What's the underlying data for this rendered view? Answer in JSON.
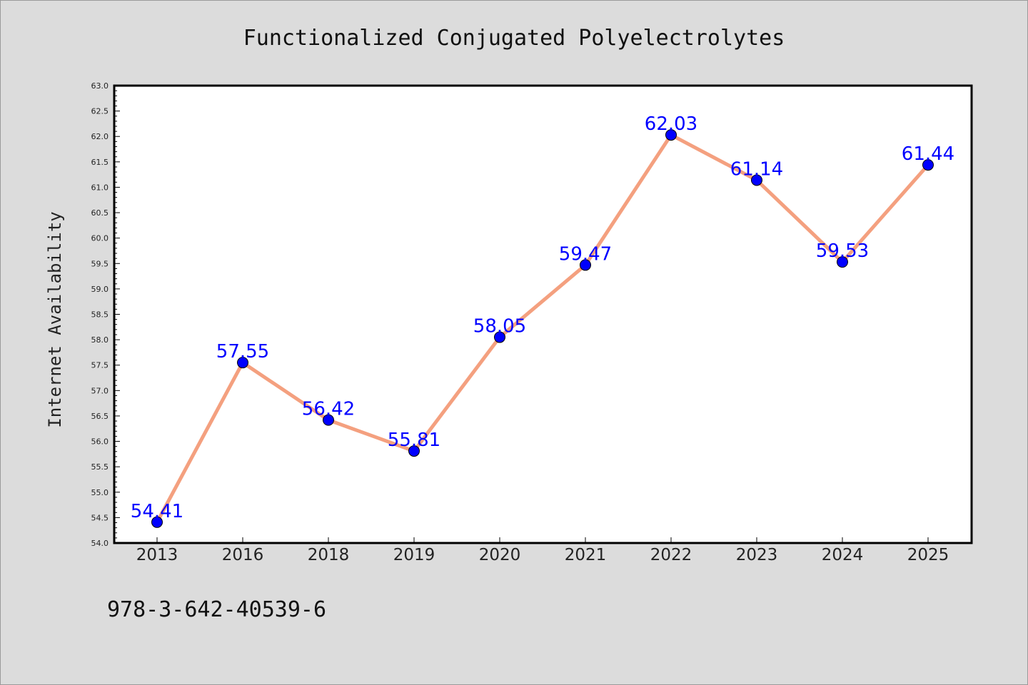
{
  "chart_data": {
    "type": "line",
    "title": "Functionalized Conjugated Polyelectrolytes",
    "ylabel": "Internet Availability",
    "xlabel": "",
    "categories": [
      "2013",
      "2016",
      "2018",
      "2019",
      "2020",
      "2021",
      "2022",
      "2023",
      "2024",
      "2025"
    ],
    "series": [
      {
        "values": [
          54.41,
          57.55,
          56.42,
          55.81,
          58.05,
          59.47,
          62.03,
          61.14,
          59.53,
          61.44
        ],
        "labels": [
          "54.41",
          "57.55",
          "56.42",
          "55.81",
          "58.05",
          "59.47",
          "62.03",
          "61.14",
          "59.53",
          "61.44"
        ]
      }
    ],
    "ylim": [
      54.0,
      63.0
    ],
    "yticks": [
      "54.0",
      "54.5",
      "55.0",
      "55.5",
      "56.0",
      "56.5",
      "57.0",
      "57.5",
      "58.0",
      "58.5",
      "59.0",
      "59.5",
      "60.0",
      "60.5",
      "61.0",
      "61.5",
      "62.0",
      "62.5",
      "63.0"
    ],
    "grid": false,
    "legend": "none",
    "colors": {
      "line": "#f4a07f",
      "marker": "#0000ff",
      "data_label": "#0000ff",
      "background": "#dcdcdc",
      "plot_background": "#ffffff"
    }
  },
  "footnote": "978-3-642-40539-6"
}
